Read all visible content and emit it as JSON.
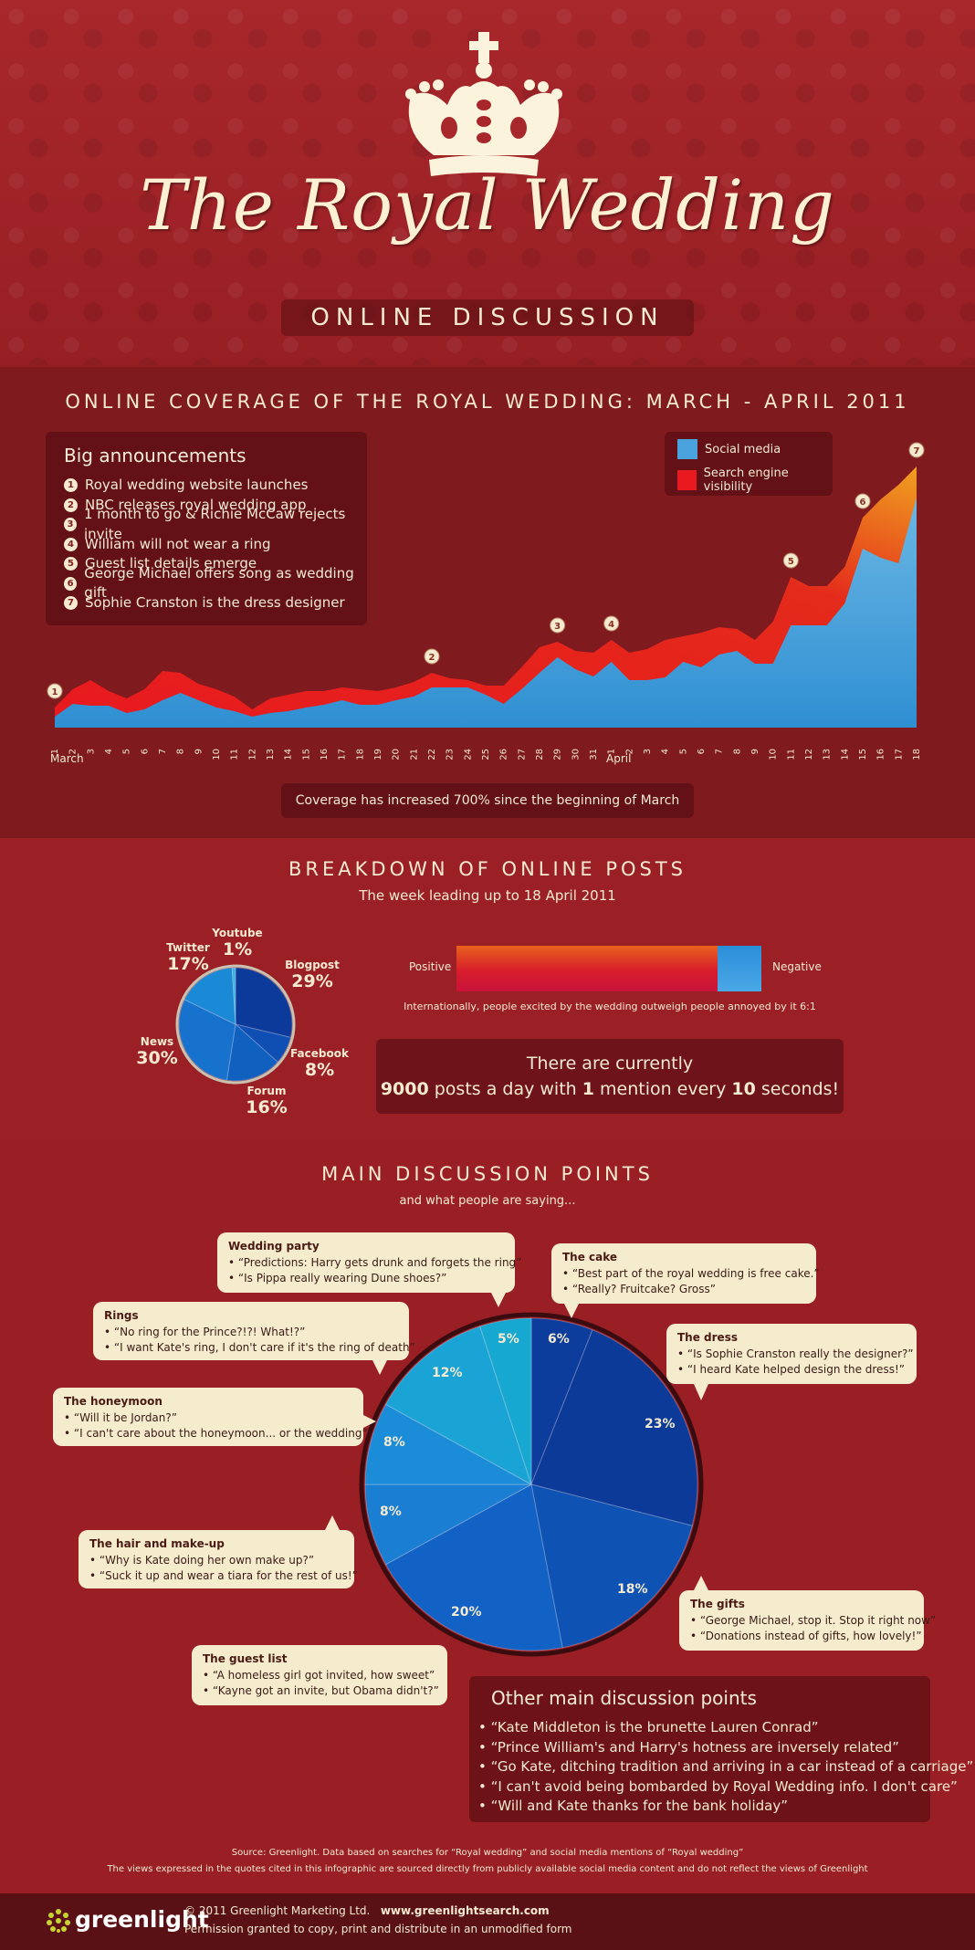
{
  "header": {
    "title": "The Royal Wedding",
    "subtitle": "ONLINE DISCUSSION"
  },
  "coverage": {
    "heading": "ONLINE COVERAGE OF THE ROYAL WEDDING: MARCH - APRIL 2011",
    "announcements_title": "Big announcements",
    "announcements": [
      {
        "num": "1",
        "text": "Royal wedding website launches"
      },
      {
        "num": "2",
        "text": "NBC releases royal wedding app"
      },
      {
        "num": "3",
        "text": "1 month to go & Richie McCaw rejects invite"
      },
      {
        "num": "4",
        "text": "William will not wear a ring"
      },
      {
        "num": "5",
        "text": "Guest list details emerge"
      },
      {
        "num": "6",
        "text": "George Michael offers song as wedding gift"
      },
      {
        "num": "7",
        "text": "Sophie Cranston is the dress designer"
      }
    ],
    "legend": [
      {
        "label": "Social media",
        "color": "#4aa3dc"
      },
      {
        "label": "Search engine visibility",
        "color": "#e8191f"
      }
    ],
    "month_labels": [
      "March",
      "April"
    ],
    "footnote": "Coverage has increased 700% since the beginning of March"
  },
  "chart_data": [
    {
      "type": "area",
      "x": [
        "1",
        "2",
        "3",
        "4",
        "5",
        "6",
        "7",
        "8",
        "9",
        "10",
        "11",
        "12",
        "13",
        "14",
        "15",
        "16",
        "17",
        "18",
        "19",
        "20",
        "21",
        "22",
        "23",
        "24",
        "25",
        "26",
        "27",
        "28",
        "29",
        "30",
        "31",
        "1",
        "2",
        "3",
        "4",
        "5",
        "6",
        "7",
        "8",
        "9",
        "10",
        "11",
        "12",
        "13",
        "14",
        "15",
        "16",
        "17",
        "18"
      ],
      "series": [
        {
          "name": "Social media",
          "color": "#4aa3dc",
          "values": [
            12,
            26,
            24,
            24,
            16,
            20,
            30,
            38,
            30,
            22,
            18,
            12,
            16,
            18,
            22,
            25,
            30,
            25,
            25,
            30,
            34,
            44,
            44,
            44,
            36,
            26,
            42,
            60,
            77,
            64,
            56,
            72,
            52,
            52,
            55,
            72,
            66,
            80,
            84,
            70,
            70,
            112,
            112,
            112,
            136,
            196,
            186,
            180,
            252
          ]
        },
        {
          "name": "Search engine visibility",
          "color": "#e8191f",
          "values": [
            22,
            42,
            52,
            40,
            32,
            42,
            62,
            60,
            48,
            42,
            34,
            20,
            32,
            36,
            40,
            40,
            44,
            42,
            40,
            44,
            50,
            60,
            54,
            52,
            46,
            46,
            66,
            88,
            94,
            84,
            82,
            96,
            82,
            86,
            96,
            100,
            104,
            110,
            108,
            96,
            116,
            165,
            155,
            155,
            176,
            230,
            250,
            266,
            286
          ]
        }
      ],
      "annotations": [
        {
          "num": "1",
          "x": "1"
        },
        {
          "num": "2",
          "x": "22"
        },
        {
          "num": "3",
          "x": "29"
        },
        {
          "num": "4",
          "x": "1"
        },
        {
          "num": "5",
          "x": "11"
        },
        {
          "num": "6",
          "x": "15"
        },
        {
          "num": "7",
          "x": "18"
        }
      ]
    },
    {
      "type": "pie",
      "title": "BREAKDOWN OF ONLINE POSTS",
      "subtitle": "The week leading up to 18 April 2011",
      "slices": [
        {
          "label": "Blogpost",
          "value": 29,
          "pct": "29%",
          "color": "#0b3a9a"
        },
        {
          "label": "Facebook",
          "value": 8,
          "pct": "8%",
          "color": "#0f4fb3"
        },
        {
          "label": "Forum",
          "value": 16,
          "pct": "16%",
          "color": "#1060c0"
        },
        {
          "label": "News",
          "value": 30,
          "pct": "30%",
          "color": "#1672cc"
        },
        {
          "label": "Twitter",
          "value": 17,
          "pct": "17%",
          "color": "#1a8ad6"
        },
        {
          "label": "Youtube",
          "value": 1,
          "pct": "1%",
          "color": "#3fb0e0"
        }
      ]
    },
    {
      "type": "pie",
      "title": "MAIN DISCUSSION POINTS",
      "subtitle": "and what people are saying...",
      "slices": [
        {
          "label": "The cake",
          "value": 6,
          "pct": "6%",
          "color": "#0c3c9c"
        },
        {
          "label": "The dress",
          "value": 23,
          "pct": "23%",
          "color": "#0b3a98"
        },
        {
          "label": "The gifts",
          "value": 18,
          "pct": "18%",
          "color": "#0e52b4"
        },
        {
          "label": "The guest list",
          "value": 20,
          "pct": "20%",
          "color": "#1162c4"
        },
        {
          "label": "The hair and make-up",
          "value": 8,
          "pct": "8%",
          "color": "#1a7ed2"
        },
        {
          "label": "The honeymoon",
          "value": 8,
          "pct": "8%",
          "color": "#1b8cd8"
        },
        {
          "label": "Rings",
          "value": 12,
          "pct": "12%",
          "color": "#1aa4d6"
        },
        {
          "label": "Wedding party",
          "value": 5,
          "pct": "5%",
          "color": "#17a8d2"
        }
      ]
    }
  ],
  "posts": {
    "heading": "BREAKDOWN OF ONLINE POSTS",
    "subheading": "The week leading up to 18 April 2011",
    "sentiment": {
      "positive_label": "Positive",
      "negative_label": "Negative",
      "positive_share": 0.857,
      "caption": "Internationally, people excited by the wedding outweigh people annoyed by it 6:1"
    },
    "stat_line1": "There are currently",
    "stat_line2_a": "9000",
    "stat_line2_b": " posts a day with ",
    "stat_line2_c": "1",
    "stat_line2_d": " mention every ",
    "stat_line2_e": "10",
    "stat_line2_f": " seconds!"
  },
  "discussion": {
    "heading": "MAIN DISCUSSION POINTS",
    "subheading": "and what people are saying...",
    "bubbles": {
      "wedding_party": {
        "title": "Wedding party",
        "quotes": [
          "“Predictions: Harry gets drunk and forgets the ring”",
          "“Is Pippa really wearing Dune shoes?”"
        ]
      },
      "cake": {
        "title": "The cake",
        "quotes": [
          "“Best part of the royal wedding is free cake.”",
          "“Really? Fruitcake?  Gross”"
        ]
      },
      "rings": {
        "title": "Rings",
        "quotes": [
          "“No ring for the Prince?!?! What!?”",
          "“I want Kate's ring, I don't care if it's the ring of death”"
        ]
      },
      "dress": {
        "title": "The dress",
        "quotes": [
          "“Is Sophie Cranston really the designer?”",
          "“I heard Kate helped design the dress!”"
        ]
      },
      "honeymoon": {
        "title": "The honeymoon",
        "quotes": [
          "“Will it be Jordan?”",
          "“I can't care about the honeymoon... or the wedding”"
        ]
      },
      "hair": {
        "title": "The hair and make-up",
        "quotes": [
          "“Why is Kate doing her own make up?”",
          "“Suck it up and wear a tiara for the rest of us!”"
        ]
      },
      "gifts": {
        "title": "The gifts",
        "quotes": [
          "“George Michael, stop it. Stop it right now”",
          "“Donations instead of gifts, how lovely!”"
        ]
      },
      "guest_list": {
        "title": "The guest list",
        "quotes": [
          "“A homeless girl got invited, how sweet”",
          "“Kayne got an invite, but Obama didn't?”"
        ]
      }
    },
    "other_title": "Other main discussion points",
    "other_points": [
      "“Kate Middleton is the brunette Lauren Conrad”",
      "“Prince William's and Harry's hotness are inversely related”",
      "“Go Kate, ditching tradition and arriving in a car instead of a carriage”",
      "“I can't avoid being bombarded by Royal Wedding info. I don't care”",
      "“Will and Kate thanks for the bank holiday”"
    ],
    "source_line1": "Source: Greenlight.   Data based on searches for “Royal wedding” and social media mentions of “Royal wedding”",
    "source_line2": "The views expressed in the quotes cited in this infographic are sourced directly from publicly available social media content and do not reflect the views of Greenlight"
  },
  "footer": {
    "logo": "greenlight",
    "copyright": "© 2011 Greenlight Marketing Ltd.",
    "website": "www.greenlightsearch.com",
    "permission": "Permission granted to copy, print and distribute in an unmodified form"
  }
}
